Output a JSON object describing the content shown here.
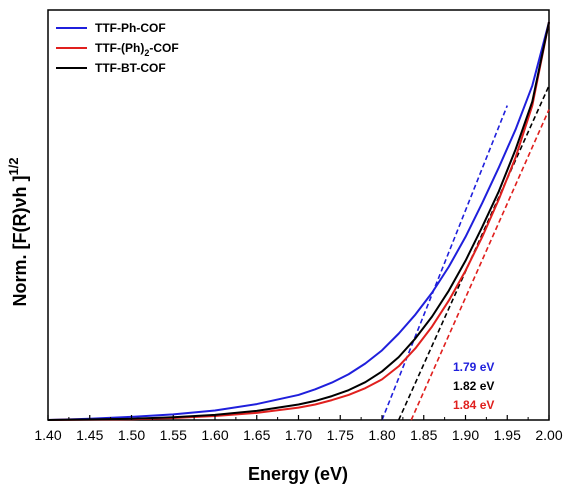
{
  "chart_data": {
    "type": "line",
    "xlabel": "Energy (eV)",
    "ylabel_main": "Norm. [F(R)νh ]",
    "ylabel_sup": "1/2",
    "xlim": [
      1.4,
      2.0
    ],
    "ylim": [
      0,
      1
    ],
    "x_ticks": [
      "1.40",
      "1.45",
      "1.50",
      "1.55",
      "1.60",
      "1.65",
      "1.70",
      "1.75",
      "1.80",
      "1.85",
      "1.90",
      "1.95",
      "2.00"
    ],
    "legend_position": "top-left",
    "series": [
      {
        "name_main": "TTF-Ph-COF",
        "name_sub": "",
        "name_tail": "",
        "color": "#1f1fdc",
        "x": [
          1.4,
          1.45,
          1.5,
          1.55,
          1.6,
          1.65,
          1.7,
          1.72,
          1.74,
          1.76,
          1.78,
          1.8,
          1.82,
          1.84,
          1.86,
          1.88,
          1.9,
          1.92,
          1.94,
          1.96,
          1.98,
          2.0
        ],
        "y": [
          0.0,
          0.003,
          0.008,
          0.014,
          0.024,
          0.04,
          0.063,
          0.077,
          0.094,
          0.115,
          0.142,
          0.175,
          0.217,
          0.265,
          0.32,
          0.385,
          0.46,
          0.545,
          0.635,
          0.73,
          0.84,
          1.0
        ],
        "tangent": [
          [
            1.8,
            0.0
          ],
          [
            1.95,
            0.79
          ]
        ],
        "bandgap": "1.79 eV"
      },
      {
        "name_main": "TTF-(Ph)",
        "name_sub": "2",
        "name_tail": "-COF",
        "color": "#e0201e",
        "x": [
          1.4,
          1.5,
          1.55,
          1.6,
          1.65,
          1.7,
          1.72,
          1.74,
          1.76,
          1.78,
          1.8,
          1.82,
          1.84,
          1.86,
          1.88,
          1.9,
          1.92,
          1.94,
          1.96,
          1.98,
          2.0
        ],
        "y": [
          0.0,
          0.002,
          0.005,
          0.01,
          0.018,
          0.031,
          0.039,
          0.05,
          0.063,
          0.08,
          0.102,
          0.135,
          0.18,
          0.235,
          0.3,
          0.375,
          0.46,
          0.555,
          0.66,
          0.79,
          1.0
        ],
        "tangent": [
          [
            1.835,
            0.0
          ],
          [
            2.0,
            0.78
          ]
        ],
        "bandgap": "1.84 eV"
      },
      {
        "name_main": "TTF-BT-COF",
        "name_sub": "",
        "name_tail": "",
        "color": "#000000",
        "x": [
          1.4,
          1.5,
          1.55,
          1.6,
          1.65,
          1.7,
          1.72,
          1.74,
          1.76,
          1.78,
          1.8,
          1.82,
          1.84,
          1.86,
          1.88,
          1.9,
          1.92,
          1.94,
          1.96,
          1.98,
          2.0
        ],
        "y": [
          0.0,
          0.003,
          0.007,
          0.013,
          0.023,
          0.039,
          0.048,
          0.06,
          0.075,
          0.095,
          0.122,
          0.158,
          0.205,
          0.26,
          0.325,
          0.4,
          0.485,
          0.575,
          0.68,
          0.8,
          1.0
        ],
        "tangent": [
          [
            1.82,
            0.0
          ],
          [
            2.0,
            0.84
          ]
        ],
        "bandgap": "1.82 eV"
      }
    ],
    "annotations": [
      {
        "text": "1.79 eV",
        "color": "#1f1fdc"
      },
      {
        "text": "1.82 eV",
        "color": "#000000"
      },
      {
        "text": "1.84 eV",
        "color": "#e0201e"
      }
    ]
  }
}
